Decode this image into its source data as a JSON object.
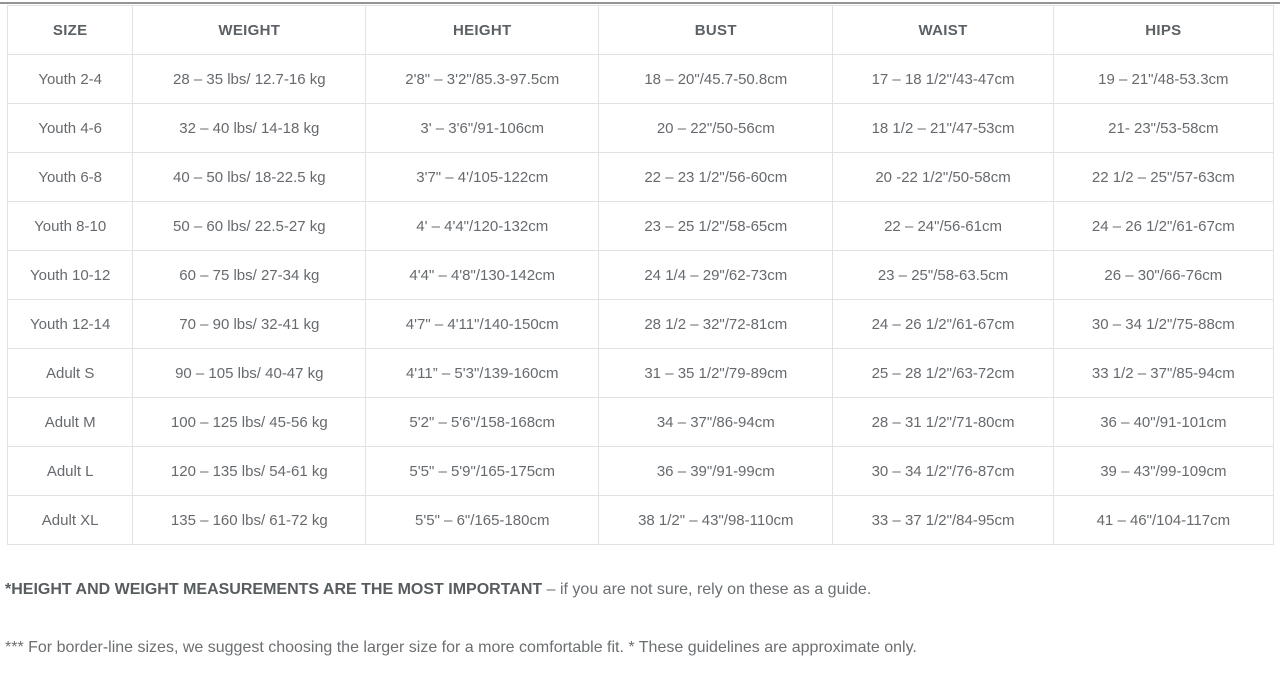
{
  "colors": {
    "background": "#ffffff",
    "top_rule": "#949494",
    "table_border": "#e2e2e2",
    "cell_text": "#666a6e",
    "header_text": "#5b6165"
  },
  "table": {
    "columns": [
      "SIZE",
      "WEIGHT",
      "HEIGHT",
      "BUST",
      "WAIST",
      "HIPS"
    ],
    "rows": [
      [
        "Youth 2-4",
        "28 – 35 lbs/ 12.7-16 kg",
        "2'8\" – 3'2\"/85.3-97.5cm",
        "18 – 20\"/45.7-50.8cm",
        "17 – 18 1/2\"/43-47cm",
        "19 – 21\"/48-53.3cm"
      ],
      [
        "Youth 4-6",
        "32 – 40 lbs/ 14-18 kg",
        "3' – 3'6\"/91-106cm",
        "20 – 22\"/50-56cm",
        "18 1/2 – 21\"/47-53cm",
        "21- 23\"/53-58cm"
      ],
      [
        "Youth 6-8",
        "40 – 50 lbs/ 18-22.5 kg",
        "3'7\" – 4'/105-122cm",
        "22 – 23 1/2\"/56-60cm",
        "20 -22 1/2\"/50-58cm",
        "22 1/2 – 25\"/57-63cm"
      ],
      [
        "Youth 8-10",
        "50 – 60 lbs/ 22.5-27 kg",
        "4' – 4'4\"/120-132cm",
        "23 – 25 1/2\"/58-65cm",
        "22 – 24\"/56-61cm",
        "24 – 26 1/2\"/61-67cm"
      ],
      [
        "Youth 10-12",
        "60 – 75 lbs/ 27-34 kg",
        "4'4\" – 4'8\"/130-142cm",
        "24 1/4 – 29\"/62-73cm",
        "23 – 25\"/58-63.5cm",
        "26 – 30\"/66-76cm"
      ],
      [
        "Youth 12-14",
        "70 – 90 lbs/ 32-41 kg",
        "4'7\" – 4'11\"/140-150cm",
        "28 1/2 – 32\"/72-81cm",
        "24 – 26 1/2\"/61-67cm",
        "30 – 34 1/2\"/75-88cm"
      ],
      [
        "Adult S",
        "90 – 105 lbs/ 40-47 kg",
        "4'11” – 5'3\"/139-160cm",
        "31 – 35 1/2\"/79-89cm",
        "25 – 28 1/2\"/63-72cm",
        "33 1/2 – 37\"/85-94cm"
      ],
      [
        "Adult M",
        "100 – 125 lbs/ 45-56 kg",
        "5'2\" – 5'6\"/158-168cm",
        "34 – 37\"/86-94cm",
        "28 – 31 1/2\"/71-80cm",
        "36 – 40\"/91-101cm"
      ],
      [
        "Adult L",
        "120 – 135 lbs/ 54-61 kg",
        "5'5\" – 5'9\"/165-175cm",
        "36 – 39\"/91-99cm",
        "30 – 34 1/2\"/76-87cm",
        "39 – 43\"/99-109cm"
      ],
      [
        "Adult XL",
        "135 – 160 lbs/ 61-72 kg",
        "5'5\" – 6\"/165-180cm",
        "38 1/2\" – 43\"/98-110cm",
        "33 – 37 1/2\"/84-95cm",
        "41 – 46\"/104-117cm"
      ]
    ]
  },
  "footnotes": {
    "first_bold": "*HEIGHT AND WEIGHT MEASUREMENTS ARE THE MOST IMPORTANT",
    "first_rest": " – if you are not sure, rely on these as a guide.",
    "second": "*** For border-line sizes, we suggest choosing the larger size for a more comfortable fit. * These guidelines are approximate only."
  }
}
